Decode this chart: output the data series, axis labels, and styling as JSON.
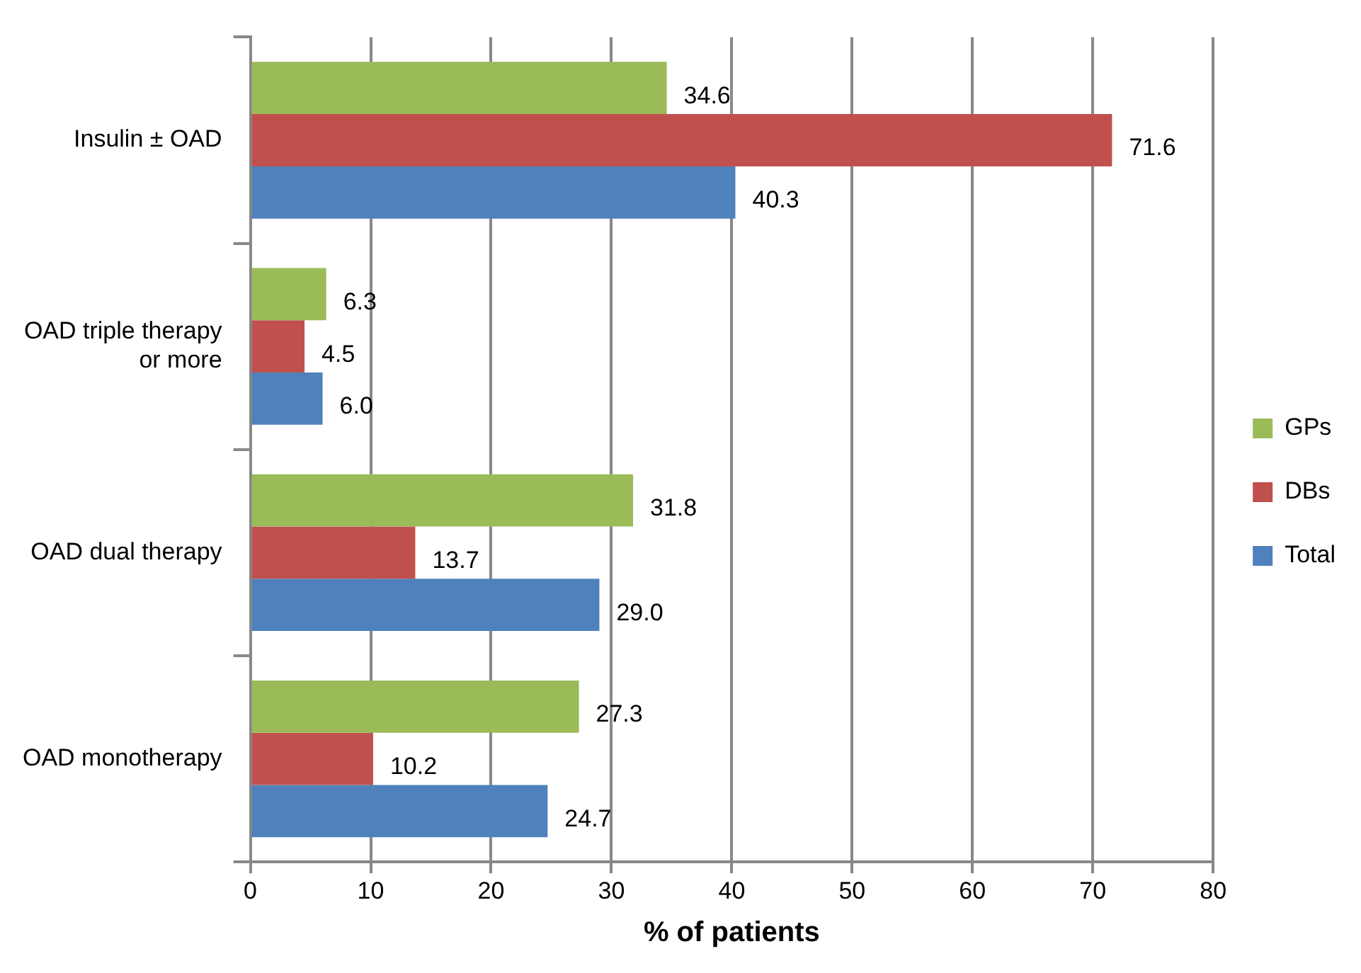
{
  "chart_data": {
    "type": "bar",
    "orientation": "horizontal",
    "xlabel": "% of patients",
    "categories": [
      "Insulin ± OAD",
      "OAD triple therapy or more",
      "OAD dual therapy",
      "OAD monotherapy"
    ],
    "series": [
      {
        "name": "GPs",
        "color": "#9bbb59",
        "values": [
          34.6,
          6.3,
          31.8,
          27.3
        ],
        "value_labels": [
          "34.6",
          "6.3",
          "31.8",
          "27.3"
        ]
      },
      {
        "name": "DBs",
        "color": "#c0504d",
        "values": [
          71.6,
          4.5,
          13.7,
          10.2
        ],
        "value_labels": [
          "71.6",
          "4.5",
          "13.7",
          "10.2"
        ]
      },
      {
        "name": "Total",
        "color": "#4f81bd",
        "values": [
          40.3,
          6.0,
          29.0,
          24.7
        ],
        "value_labels": [
          "40.3",
          "6.0",
          "29.0",
          "24.7"
        ]
      }
    ],
    "xlim": [
      0,
      80
    ],
    "xticks": [
      0,
      10,
      20,
      30,
      40,
      50,
      60,
      70,
      80
    ],
    "grid": "x",
    "legend": "right"
  }
}
